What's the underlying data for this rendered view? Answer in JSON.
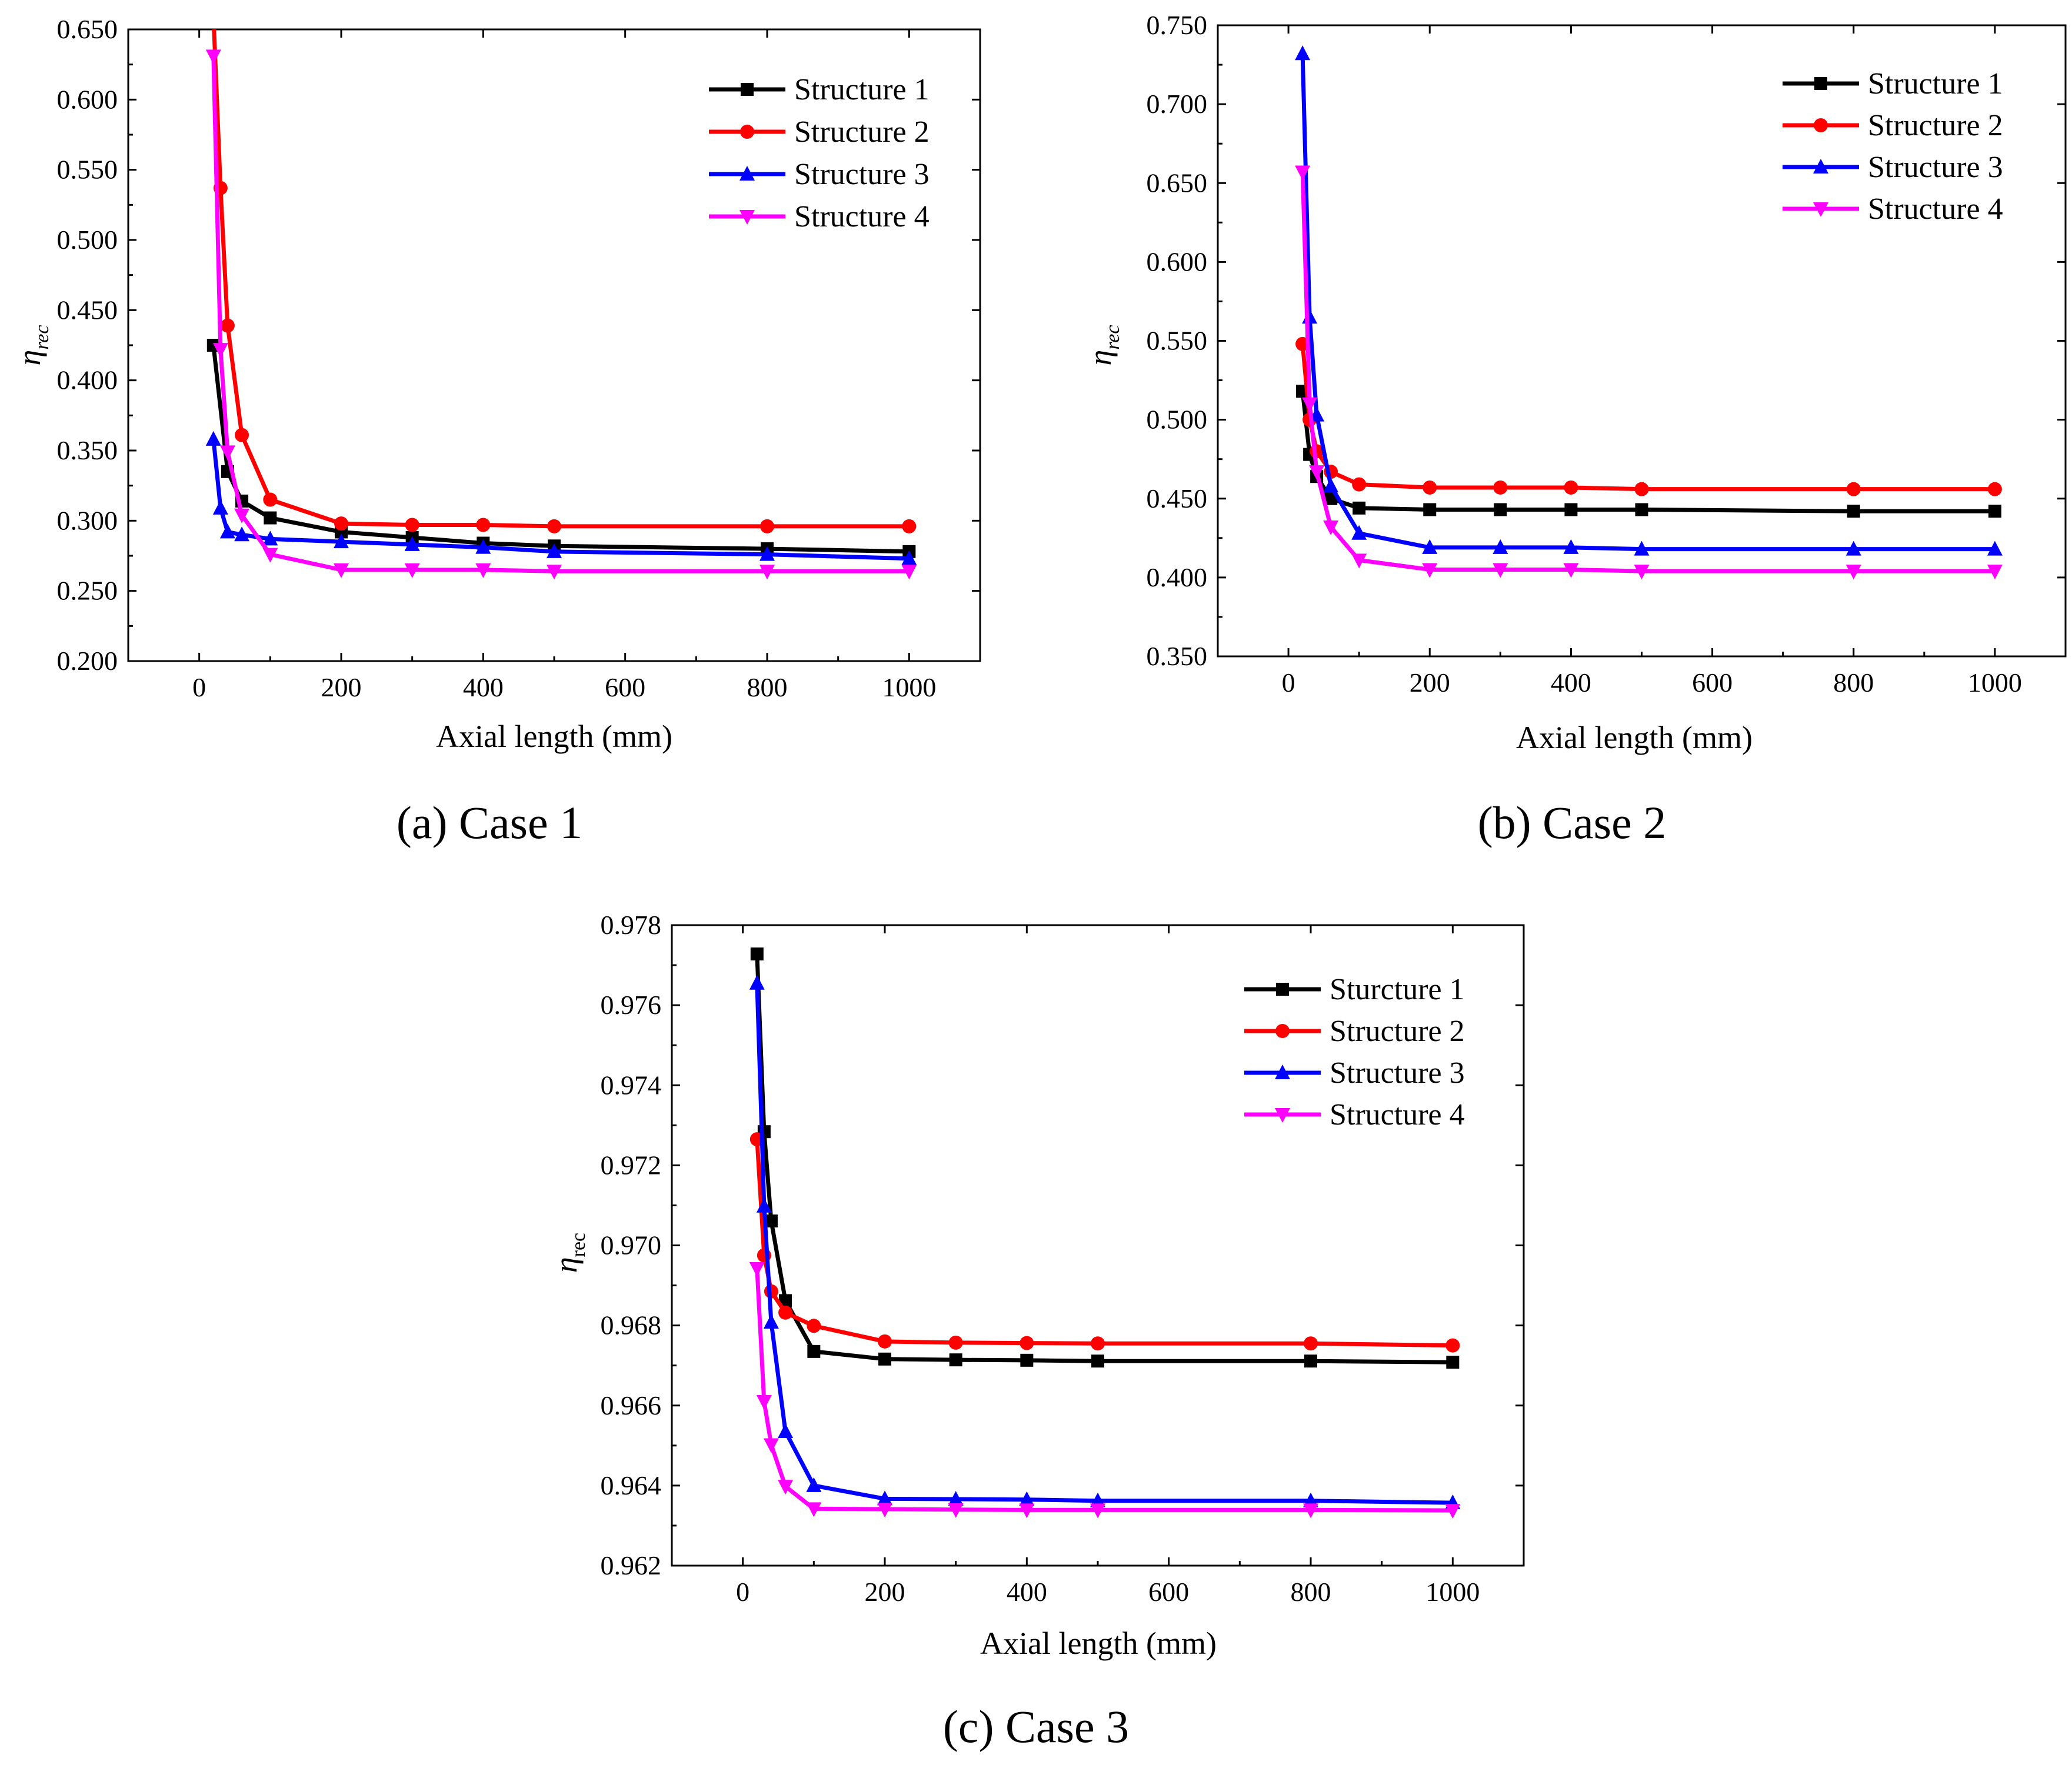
{
  "figure": {
    "background": "#ffffff",
    "series_colors": [
      "#000000",
      "#ff0000",
      "#0000ff",
      "#ff00ff"
    ],
    "marker_shapes": [
      "square",
      "circle",
      "triangle-up",
      "triangle-down"
    ]
  },
  "chart_data": [
    {
      "type": "line",
      "caption": "(a) Case 1",
      "title": "",
      "xlabel": "Axial length (mm)",
      "ylabel": "η",
      "ylabel_sub": "rec",
      "xlim": [
        -100,
        1100
      ],
      "ylim": [
        0.2,
        0.65
      ],
      "xticks": [
        0,
        200,
        400,
        600,
        800,
        1000
      ],
      "xtick_labels": [
        "0",
        "200",
        "400",
        "600",
        "800",
        "1000"
      ],
      "yticks": [
        0.2,
        0.25,
        0.3,
        0.35,
        0.4,
        0.45,
        0.5,
        0.55,
        0.6,
        0.65
      ],
      "ytick_labels": [
        "0.200",
        "0.250",
        "0.300",
        "0.350",
        "0.400",
        "0.450",
        "0.500",
        "0.550",
        "0.600",
        "0.650"
      ],
      "legend_position": "top-right",
      "series": [
        {
          "name": "Structure 1",
          "x": [
            20,
            40,
            60,
            100,
            200,
            300,
            400,
            500,
            800,
            1000
          ],
          "values": [
            0.425,
            0.335,
            0.314,
            0.302,
            0.292,
            0.288,
            0.284,
            0.282,
            0.28,
            0.278
          ]
        },
        {
          "name": "Structure 2",
          "x": [
            20,
            30,
            40,
            60,
            100,
            200,
            300,
            400,
            500,
            800,
            1000
          ],
          "values": [
            0.66,
            0.537,
            0.439,
            0.361,
            0.315,
            0.298,
            0.297,
            0.297,
            0.296,
            0.296,
            0.296
          ]
        },
        {
          "name": "Structure 3",
          "x": [
            20,
            30,
            40,
            60,
            100,
            200,
            300,
            400,
            500,
            800,
            1000
          ],
          "values": [
            0.358,
            0.309,
            0.292,
            0.29,
            0.287,
            0.285,
            0.283,
            0.281,
            0.278,
            0.276,
            0.273
          ]
        },
        {
          "name": "Structure 4",
          "x": [
            20,
            30,
            40,
            60,
            100,
            200,
            300,
            400,
            500,
            800,
            1000
          ],
          "values": [
            0.631,
            0.422,
            0.349,
            0.304,
            0.276,
            0.265,
            0.265,
            0.265,
            0.264,
            0.264,
            0.264
          ]
        }
      ]
    },
    {
      "type": "line",
      "caption": "(b) Case 2",
      "title": "",
      "xlabel": "Axial length (mm)",
      "ylabel": "η",
      "ylabel_sub": "rec",
      "xlim": [
        -100,
        1100
      ],
      "ylim": [
        0.35,
        0.75
      ],
      "xticks": [
        0,
        200,
        400,
        600,
        800,
        1000
      ],
      "xtick_labels": [
        "0",
        "200",
        "400",
        "600",
        "800",
        "1000"
      ],
      "yticks": [
        0.35,
        0.4,
        0.45,
        0.5,
        0.55,
        0.6,
        0.65,
        0.7,
        0.75
      ],
      "ytick_labels": [
        "0.350",
        "0.400",
        "0.450",
        "0.500",
        "0.550",
        "0.600",
        "0.650",
        "0.700",
        "0.750"
      ],
      "legend_position": "top-right",
      "series": [
        {
          "name": "Structure 1",
          "x": [
            20,
            30,
            40,
            60,
            100,
            200,
            300,
            400,
            500,
            800,
            1000
          ],
          "values": [
            0.518,
            0.478,
            0.464,
            0.45,
            0.444,
            0.443,
            0.443,
            0.443,
            0.443,
            0.442,
            0.442
          ]
        },
        {
          "name": "Structure 2",
          "x": [
            20,
            30,
            40,
            60,
            100,
            200,
            300,
            400,
            500,
            800,
            1000
          ],
          "values": [
            0.548,
            0.5,
            0.48,
            0.467,
            0.459,
            0.457,
            0.457,
            0.457,
            0.456,
            0.456,
            0.456
          ]
        },
        {
          "name": "Structure 3",
          "x": [
            20,
            30,
            40,
            60,
            100,
            200,
            300,
            400,
            500,
            800,
            1000
          ],
          "values": [
            0.732,
            0.565,
            0.503,
            0.458,
            0.428,
            0.419,
            0.419,
            0.419,
            0.418,
            0.418,
            0.418
          ]
        },
        {
          "name": "Structure 4",
          "x": [
            20,
            30,
            40,
            60,
            100,
            200,
            300,
            400,
            500,
            800,
            1000
          ],
          "values": [
            0.657,
            0.51,
            0.467,
            0.432,
            0.411,
            0.405,
            0.405,
            0.405,
            0.404,
            0.404,
            0.404
          ]
        }
      ]
    },
    {
      "type": "line",
      "caption": "(c) Case 3",
      "title": "",
      "xlabel": "Axial length (mm)",
      "ylabel": "η",
      "ylabel_sub": "rec",
      "xlim": [
        -100,
        1100
      ],
      "ylim": [
        0.962,
        0.978
      ],
      "xticks": [
        0,
        200,
        400,
        600,
        800,
        1000
      ],
      "xtick_labels": [
        "0",
        "200",
        "400",
        "600",
        "800",
        "1000"
      ],
      "yticks": [
        0.962,
        0.964,
        0.966,
        0.968,
        0.97,
        0.972,
        0.974,
        0.976,
        0.978
      ],
      "ytick_labels": [
        "0.962",
        "0.964",
        "0.966",
        "0.968",
        "0.970",
        "0.972",
        "0.974",
        "0.976",
        "0.978"
      ],
      "legend_position": "top-right",
      "series": [
        {
          "name": "Sturcture 1",
          "x": [
            20,
            30,
            40,
            60,
            100,
            200,
            300,
            400,
            500,
            800,
            1000
          ],
          "values": [
            0.97728,
            0.97284,
            0.97061,
            0.96862,
            0.96735,
            0.96716,
            0.96714,
            0.96713,
            0.96711,
            0.96711,
            0.96708
          ]
        },
        {
          "name": "Structure 2",
          "x": [
            20,
            30,
            40,
            60,
            100,
            200,
            300,
            400,
            500,
            800,
            1000
          ],
          "values": [
            0.97265,
            0.96975,
            0.96885,
            0.96832,
            0.96799,
            0.9676,
            0.96757,
            0.96756,
            0.96755,
            0.96755,
            0.9675
          ]
        },
        {
          "name": "Structure 3",
          "x": [
            20,
            30,
            40,
            60,
            100,
            200,
            300,
            400,
            500,
            800,
            1000
          ],
          "values": [
            0.97655,
            0.97098,
            0.96808,
            0.96535,
            0.964,
            0.96367,
            0.96366,
            0.96365,
            0.96362,
            0.96362,
            0.96357
          ]
        },
        {
          "name": "Structure 4",
          "x": [
            20,
            30,
            40,
            60,
            100,
            200,
            300,
            400,
            500,
            800,
            1000
          ],
          "values": [
            0.96942,
            0.9661,
            0.96502,
            0.96398,
            0.96342,
            0.96341,
            0.9634,
            0.96339,
            0.96339,
            0.96339,
            0.96338
          ]
        }
      ]
    }
  ]
}
